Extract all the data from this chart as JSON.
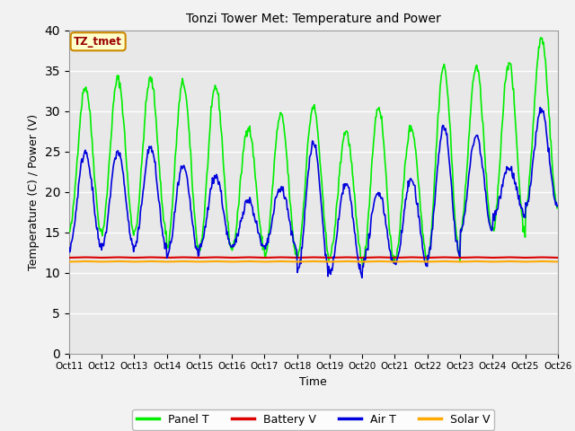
{
  "title": "Tonzi Tower Met: Temperature and Power",
  "xlabel": "Time",
  "ylabel": "Temperature (C) / Power (V)",
  "ylim": [
    0,
    40
  ],
  "yticks": [
    0,
    5,
    10,
    15,
    20,
    25,
    30,
    35,
    40
  ],
  "xtick_labels": [
    "Oct 11",
    "Oct 12",
    "Oct 13",
    "Oct 14",
    "Oct 15",
    "Oct 16",
    "Oct 17",
    "Oct 18",
    "Oct 19",
    "Oct 20",
    "Oct 21",
    "Oct 22",
    "Oct 23",
    "Oct 24",
    "Oct 25",
    "Oct 26"
  ],
  "fig_bg": "#f2f2f2",
  "plot_bg": "#e8e8e8",
  "grid_color": "#ffffff",
  "annotation_text": "TZ_tmet",
  "annotation_bg": "#ffffcc",
  "annotation_border": "#cc8800",
  "annotation_text_color": "#990000",
  "legend_entries": [
    "Panel T",
    "Battery V",
    "Air T",
    "Solar V"
  ],
  "legend_colors": [
    "#00ee00",
    "#dd0000",
    "#0000dd",
    "#ffaa00"
  ],
  "day_panel_peaks": [
    33,
    34,
    34,
    33.5,
    33,
    28,
    29.5,
    30.5,
    27.5,
    30.5,
    28,
    35.5,
    35.5,
    36,
    39
  ],
  "day_air_peaks": [
    25,
    25,
    25.5,
    23,
    22,
    19,
    20.5,
    26,
    21,
    20,
    21.5,
    28,
    27,
    23,
    30
  ],
  "day_panel_mins": [
    15,
    15,
    15,
    13,
    13,
    13,
    12,
    12,
    12,
    11,
    12,
    12,
    15,
    15,
    18
  ],
  "day_air_mins": [
    13,
    13,
    13,
    12,
    13,
    13,
    13,
    10,
    10,
    11,
    11,
    12,
    15,
    17,
    18
  ],
  "battery_base": 11.85,
  "solar_base": 11.35,
  "n_days": 15,
  "pts_per_day": 48
}
